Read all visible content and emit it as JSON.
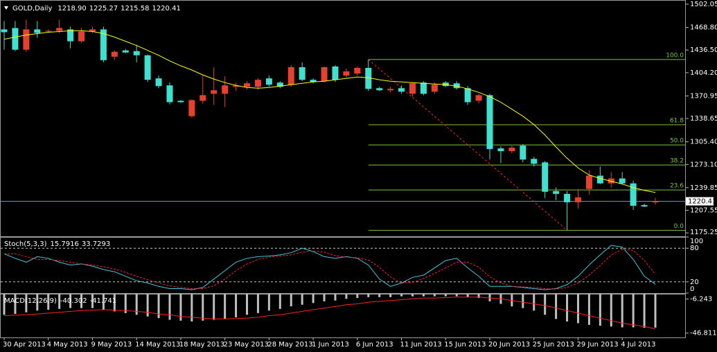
{
  "chart_data": [
    {
      "type": "candlestick",
      "title": "GOLD,Daily",
      "header_values": [
        "1218.90",
        "1225.27",
        "1215.58",
        "1220.41"
      ],
      "categories": [
        "30 Apr 2013",
        null,
        null,
        null,
        "4 May 2013",
        null,
        null,
        null,
        "9 May 2013",
        null,
        null,
        null,
        "14 May 2013",
        null,
        null,
        null,
        "18 May 2013",
        null,
        null,
        null,
        "23 May 2013",
        null,
        null,
        null,
        "28 May 2013",
        null,
        null,
        null,
        "1 Jun 2013",
        null,
        null,
        null,
        "6 Jun 2013",
        null,
        null,
        null,
        "11 Jun 2013",
        null,
        null,
        null,
        "15 Jun 2013",
        null,
        null,
        null,
        "20 Jun 2013",
        null,
        null,
        null,
        "25 Jun 2013",
        null,
        null,
        null,
        "29 Jun 2013",
        null,
        null,
        null,
        "4 Jul 2013",
        null,
        null,
        null
      ],
      "open": [
        1466,
        1468,
        1437,
        1466,
        1463,
        1464,
        1466,
        1449,
        1463,
        1466,
        1427,
        1436,
        1435,
        1429,
        1396,
        1386,
        1364,
        1342,
        1364,
        1374,
        1374,
        1384,
        1384,
        1384,
        1396,
        1390,
        1387,
        1412,
        1394,
        1392,
        1413,
        1400,
        1403,
        1411,
        1382,
        1379,
        1382,
        1374,
        1390,
        1377,
        1390,
        1389,
        1382,
        1364,
        1372,
        1296,
        1292,
        1300,
        1281,
        1276,
        1235,
        1231,
        1219,
        1238,
        1257,
        1246,
        1253,
        1246,
        1215,
        1218.9
      ],
      "high": [
        1478,
        1478,
        1480,
        1478,
        1466,
        1480,
        1470,
        1468,
        1470,
        1470,
        1436,
        1438,
        1444,
        1430,
        1400,
        1390,
        1365,
        1366,
        1401,
        1412,
        1399,
        1390,
        1392,
        1396,
        1400,
        1392,
        1415,
        1419,
        1396,
        1413,
        1415,
        1410,
        1413,
        1423,
        1384,
        1384,
        1386,
        1390,
        1392,
        1390,
        1392,
        1392,
        1385,
        1374,
        1374,
        1299,
        1300,
        1302,
        1284,
        1278,
        1240,
        1235,
        1238,
        1265,
        1270,
        1262,
        1262,
        1250,
        1217,
        1225.27
      ],
      "low": [
        1437,
        1435,
        1434,
        1454,
        1461,
        1461,
        1439,
        1447,
        1461,
        1419,
        1422,
        1432,
        1419,
        1391,
        1382,
        1359,
        1361,
        1340,
        1360,
        1358,
        1355,
        1378,
        1380,
        1380,
        1384,
        1382,
        1384,
        1392,
        1389,
        1390,
        1391,
        1397,
        1400,
        1378,
        1378,
        1376,
        1374,
        1370,
        1372,
        1374,
        1384,
        1380,
        1358,
        1360,
        1280,
        1275,
        1289,
        1276,
        1270,
        1225,
        1222,
        1179,
        1210,
        1230,
        1245,
        1240,
        1245,
        1208,
        1212,
        1215.58
      ],
      "close": [
        1462,
        1437,
        1466,
        1461,
        1464,
        1468,
        1449,
        1463,
        1466,
        1422,
        1434,
        1433,
        1429,
        1394,
        1385,
        1362,
        1362,
        1365,
        1372,
        1379,
        1386,
        1386,
        1389,
        1394,
        1387,
        1384,
        1412,
        1394,
        1391,
        1412,
        1394,
        1406,
        1411,
        1381,
        1379,
        1381,
        1377,
        1389,
        1374,
        1387,
        1385,
        1382,
        1362,
        1372,
        1295,
        1292,
        1297,
        1280,
        1274,
        1234,
        1231,
        1219,
        1226,
        1257,
        1246,
        1253,
        1246,
        1214,
        1213,
        1220.41
      ],
      "up_color": "#e8402f",
      "down_color": "#40e0d0",
      "moving_average": {
        "color": "#ffff00",
        "values": [
          1452,
          1455,
          1458,
          1460,
          1462,
          1463,
          1464,
          1464,
          1463,
          1460,
          1455,
          1449,
          1443,
          1436,
          1429,
          1421,
          1414,
          1408,
          1401,
          1395,
          1390,
          1386,
          1383,
          1382,
          1383,
          1385,
          1387,
          1389,
          1391,
          1392,
          1394,
          1396,
          1398,
          1397,
          1394,
          1392,
          1391,
          1390,
          1389,
          1388,
          1387,
          1385,
          1381,
          1376,
          1370,
          1362,
          1352,
          1342,
          1330,
          1315,
          1298,
          1282,
          1268,
          1258,
          1253,
          1249,
          1245,
          1240,
          1236,
          1233
        ]
      },
      "last_price_line_color": "#6f8fa8",
      "fibonacci": {
        "color": "#7fc23f",
        "trend_color": "#ff2020",
        "high": 1423,
        "low": 1179,
        "levels": [
          {
            "value": 100,
            "label": "100.0"
          },
          61.8,
          {
            "value": 50,
            "label": "50.0"
          },
          38.2,
          23.6,
          {
            "value": 0,
            "label": "0.0"
          }
        ]
      },
      "ylim": [
        1170.4,
        1508
      ],
      "yticks": [
        1502.05,
        {
          "value": 1468.8,
          "label": "1468.80"
        },
        {
          "value": 1436.5,
          "label": "1436.50"
        },
        {
          "value": 1404.2,
          "label": "1404.20"
        },
        1370.95,
        1338.65,
        {
          "value": 1305.4,
          "label": "1305.40"
        },
        {
          "value": 1273.1,
          "label": "1273.10"
        },
        1239.85,
        1207.55,
        1175.25
      ]
    },
    {
      "type": "stochastic",
      "title": "Stoch(5,3,3)",
      "series": [
        {
          "color": "#40c8e0",
          "values": [
            70,
            62,
            55,
            65,
            62,
            55,
            50,
            52,
            48,
            42,
            38,
            30,
            22,
            18,
            12,
            8,
            8,
            6,
            10,
            25,
            40,
            55,
            62,
            65,
            66,
            68,
            72,
            80,
            74,
            65,
            62,
            65,
            62,
            50,
            25,
            12,
            18,
            28,
            32,
            45,
            58,
            62,
            45,
            30,
            12,
            12,
            12,
            10,
            8,
            6,
            8,
            15,
            30,
            50,
            68,
            85,
            82,
            60,
            30,
            15.7916
          ]
        },
        {
          "color": "#ff2020",
          "dashed": true,
          "values": [
            70,
            70,
            65,
            60,
            60,
            58,
            55,
            52,
            50,
            47,
            43,
            37,
            30,
            24,
            18,
            13,
            10,
            8,
            8,
            13,
            25,
            40,
            52,
            60,
            64,
            66,
            68,
            73,
            75,
            73,
            67,
            64,
            63,
            59,
            46,
            29,
            18,
            19,
            26,
            35,
            45,
            55,
            55,
            46,
            29,
            18,
            12,
            11,
            10,
            8,
            7,
            10,
            18,
            32,
            49,
            68,
            78,
            76,
            58,
            33.7293
          ]
        }
      ],
      "levels": [
        80,
        20
      ],
      "ylim": [
        0,
        100
      ],
      "yticks": [
        100,
        80,
        20,
        0
      ]
    },
    {
      "type": "macd",
      "title": "MACD(12,26,9)",
      "histogram": {
        "color": "#c0c0c0",
        "values": [
          -25,
          -24,
          -22,
          -20,
          -19,
          -18,
          -17,
          -17,
          -17,
          -19,
          -21,
          -23,
          -25,
          -27,
          -29,
          -31,
          -32,
          -33,
          -32,
          -31,
          -30,
          -28,
          -25,
          -23,
          -20,
          -18,
          -15,
          -13,
          -11,
          -9,
          -8,
          -6,
          -5,
          -4,
          -4,
          -4,
          -3,
          -3,
          -3,
          -3,
          -3,
          -3,
          -4,
          -5,
          -9,
          -12,
          -15,
          -17,
          -20,
          -25,
          -30,
          -33,
          -35,
          -37,
          -38,
          -39,
          -40,
          -40,
          -40.5,
          -40.302
        ]
      },
      "signal": {
        "color": "#ff2020",
        "values": [
          -26,
          -25.5,
          -25,
          -24,
          -23,
          -22,
          -21,
          -20,
          -19.5,
          -19,
          -19.5,
          -20,
          -21,
          -22,
          -24,
          -25,
          -27,
          -28,
          -29,
          -30,
          -30,
          -29.5,
          -29,
          -28,
          -26,
          -25,
          -23,
          -21,
          -19,
          -17,
          -15,
          -13,
          -12,
          -10,
          -9,
          -8,
          -7,
          -6,
          -5,
          -5,
          -4.5,
          -4,
          -4,
          -4,
          -5,
          -6,
          -8,
          -10,
          -12,
          -14,
          -17,
          -20,
          -23,
          -26,
          -29,
          -32,
          -35,
          -37,
          -39,
          -41.741
        ]
      },
      "ylim": [
        -52,
        0
      ],
      "yticks": [
        -6.243,
        -46.811
      ]
    }
  ]
}
